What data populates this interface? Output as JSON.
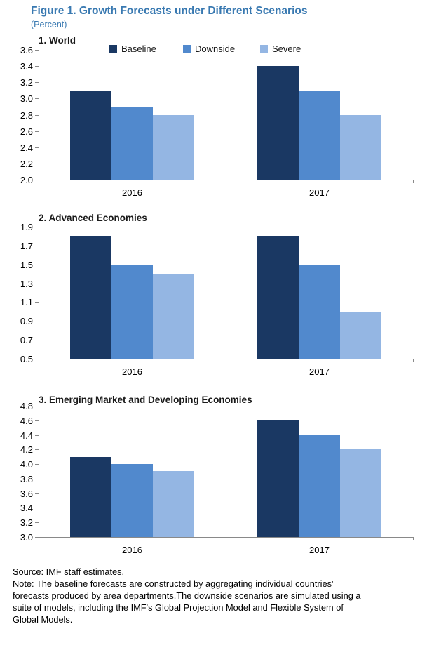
{
  "figure": {
    "title": "Figure 1. Growth Forecasts under Different Scenarios",
    "subtitle": "(Percent)",
    "title_color": "#3979B1"
  },
  "legend": {
    "position": "top-inside-first-panel",
    "entries": [
      {
        "label": "Baseline",
        "color": "#1A3863"
      },
      {
        "label": "Downside",
        "color": "#5189CD"
      },
      {
        "label": "Severe",
        "color": "#94B6E3"
      }
    ]
  },
  "chart_data": [
    {
      "type": "bar",
      "title": "1. World",
      "categories": [
        "2016",
        "2017"
      ],
      "series": [
        {
          "name": "Baseline",
          "values": [
            3.1,
            3.4
          ]
        },
        {
          "name": "Downside",
          "values": [
            2.9,
            3.1
          ]
        },
        {
          "name": "Severe",
          "values": [
            2.8,
            2.8
          ]
        }
      ],
      "ylim": [
        2.0,
        3.6
      ],
      "ytick_step": 0.2,
      "grid": false,
      "legend_position": "top"
    },
    {
      "type": "bar",
      "title": "2. Advanced Economies",
      "categories": [
        "2016",
        "2017"
      ],
      "series": [
        {
          "name": "Baseline",
          "values": [
            1.8,
            1.8
          ]
        },
        {
          "name": "Downside",
          "values": [
            1.5,
            1.5
          ]
        },
        {
          "name": "Severe",
          "values": [
            1.4,
            1.0
          ]
        }
      ],
      "ylim": [
        0.5,
        1.9
      ],
      "ytick_step": 0.2,
      "grid": false,
      "legend_position": "none"
    },
    {
      "type": "bar",
      "title": "3. Emerging Market and Developing Economies",
      "categories": [
        "2016",
        "2017"
      ],
      "series": [
        {
          "name": "Baseline",
          "values": [
            4.1,
            4.6
          ]
        },
        {
          "name": "Downside",
          "values": [
            4.0,
            4.4
          ]
        },
        {
          "name": "Severe",
          "values": [
            3.9,
            4.2
          ]
        }
      ],
      "ylim": [
        3.0,
        4.8
      ],
      "ytick_step": 0.2,
      "grid": false,
      "legend_position": "none"
    }
  ],
  "footer": {
    "lines": [
      "Source: IMF staff estimates.",
      "Note: The baseline forecasts are constructed by aggregating individual countries'",
      "forecasts produced by area departments.The downside scenarios are simulated using a",
      "suite of models, including the IMF's Global Projection Model and Flexible System of",
      "Global Models."
    ]
  },
  "colors": {
    "axis": "#898989",
    "text": "#000000",
    "background": "#FFFFFF"
  }
}
